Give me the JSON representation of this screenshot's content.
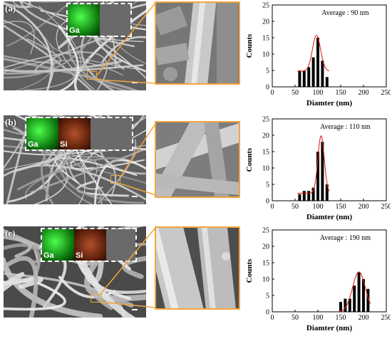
{
  "panels": [
    {
      "label": "(a)",
      "eds_labels": [
        "Ga"
      ],
      "chart_data": {
        "type": "bar",
        "xlabel": "Diamter (nm)",
        "ylabel": "Counts",
        "xlim": [
          0,
          250
        ],
        "ylim": [
          0,
          25
        ],
        "xticks": [
          0,
          50,
          100,
          150,
          200,
          250
        ],
        "yticks": [
          0,
          5,
          10,
          15,
          20,
          25
        ],
        "annotation": "Average : 90 nm",
        "bars": [
          {
            "x": 60,
            "y": 5
          },
          {
            "x": 70,
            "y": 5
          },
          {
            "x": 80,
            "y": 6
          },
          {
            "x": 90,
            "y": 9
          },
          {
            "x": 100,
            "y": 15
          },
          {
            "x": 110,
            "y": 8
          },
          {
            "x": 120,
            "y": 3
          }
        ],
        "fit": {
          "mean": 97,
          "sd": 9,
          "peak": 15.7,
          "base": 4.8
        }
      }
    },
    {
      "label": "(b)",
      "eds_labels": [
        "Ga",
        "Si"
      ],
      "chart_data": {
        "type": "bar",
        "xlabel": "Diamter (nm)",
        "ylabel": "Counts",
        "xlim": [
          0,
          250
        ],
        "ylim": [
          0,
          25
        ],
        "xticks": [
          0,
          50,
          100,
          150,
          200,
          250
        ],
        "yticks": [
          0,
          5,
          10,
          15,
          20,
          25
        ],
        "annotation": "Average : 110 nm",
        "bars": [
          {
            "x": 60,
            "y": 2
          },
          {
            "x": 70,
            "y": 3
          },
          {
            "x": 80,
            "y": 3
          },
          {
            "x": 90,
            "y": 4
          },
          {
            "x": 100,
            "y": 15
          },
          {
            "x": 110,
            "y": 18
          },
          {
            "x": 120,
            "y": 5
          }
        ],
        "fit": {
          "mean": 107,
          "sd": 7,
          "peak": 19.8,
          "base": 2.3
        }
      }
    },
    {
      "label": "(c)",
      "eds_labels": [
        "Ga",
        "Si"
      ],
      "chart_data": {
        "type": "bar",
        "xlabel": "Diamter (nm)",
        "ylabel": "Counts",
        "xlim": [
          0,
          250
        ],
        "ylim": [
          0,
          25
        ],
        "xticks": [
          0,
          50,
          100,
          150,
          200,
          250
        ],
        "yticks": [
          0,
          5,
          10,
          15,
          20,
          25
        ],
        "annotation": "Average : 190 nm",
        "bars": [
          {
            "x": 150,
            "y": 3
          },
          {
            "x": 160,
            "y": 4
          },
          {
            "x": 170,
            "y": 4
          },
          {
            "x": 180,
            "y": 8
          },
          {
            "x": 190,
            "y": 12
          },
          {
            "x": 200,
            "y": 10
          },
          {
            "x": 210,
            "y": 7
          }
        ],
        "fit": {
          "mean": 190,
          "sd": 14,
          "peak": 12.2,
          "base": 0
        }
      }
    }
  ],
  "colors": {
    "accent": "#f0a63e",
    "fit": "#e0261f",
    "bar": "#000000"
  }
}
